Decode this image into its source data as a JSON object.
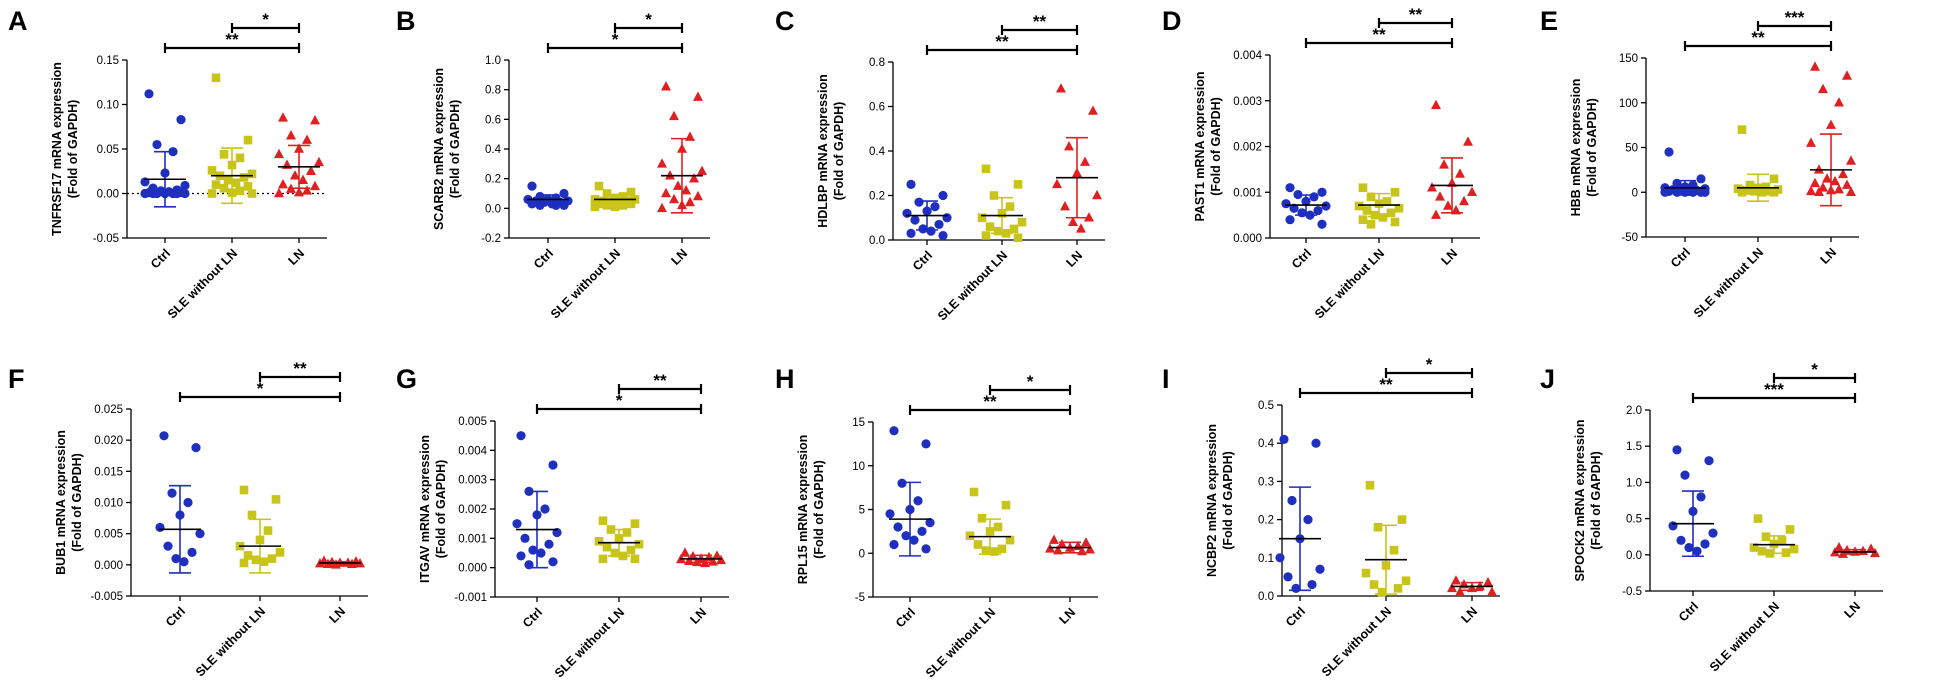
{
  "figure": {
    "groups": [
      "Ctrl",
      "SLE without LN",
      "LN"
    ],
    "colors": {
      "Ctrl": "#1f2fbf",
      "SLE without LN": "#c9c41a",
      "LN": "#e02020"
    },
    "marker_shapes": [
      "circle",
      "square",
      "triangle"
    ]
  },
  "chart_data": [
    {
      "panel": "A",
      "type": "scatter",
      "subtype": "dot-plot-mean-sd",
      "ylabel": "TNFRSF17 mRNA expression",
      "ylabel2": "(Fold of GAPDH)",
      "categories": [
        "Ctrl",
        "SLE without LN",
        "LN"
      ],
      "ylim": [
        -0.05,
        0.15
      ],
      "yticks": [
        -0.05,
        0.0,
        0.05,
        0.1,
        0.15
      ],
      "ytick_labels": [
        "-0.05",
        "0.00",
        "0.05",
        "0.10",
        "0.15"
      ],
      "zero_line": true,
      "series": [
        {
          "name": "Ctrl",
          "mean": 0.016,
          "sd": 0.031,
          "points": [
            0.112,
            0.083,
            0.055,
            0.047,
            0.023,
            0.013,
            0.009,
            0.006,
            0.004,
            0.003,
            0.002,
            0.001,
            0.001,
            0.0,
            0.0,
            0.0,
            0.0,
            0.0,
            0.0,
            0.0
          ]
        },
        {
          "name": "SLE without LN",
          "mean": 0.02,
          "sd": 0.031,
          "points": [
            0.13,
            0.06,
            0.044,
            0.04,
            0.032,
            0.026,
            0.022,
            0.02,
            0.018,
            0.015,
            0.012,
            0.01,
            0.008,
            0.006,
            0.003,
            0.001,
            0.0,
            0.0
          ]
        },
        {
          "name": "LN",
          "mean": 0.03,
          "sd": 0.024,
          "points": [
            0.085,
            0.082,
            0.065,
            0.06,
            0.05,
            0.044,
            0.035,
            0.032,
            0.025,
            0.02,
            0.015,
            0.01,
            0.008,
            0.005,
            0.003,
            0.001,
            0.0
          ]
        }
      ],
      "comparisons": [
        {
          "from": 1,
          "to": 2,
          "label": "*"
        },
        {
          "from": 0,
          "to": 2,
          "label": "**"
        }
      ]
    },
    {
      "panel": "B",
      "type": "scatter",
      "subtype": "dot-plot-mean-sd",
      "ylabel": "SCARB2 mRNA expression",
      "ylabel2": "(Fold of GAPDH)",
      "categories": [
        "Ctrl",
        "SLE without LN",
        "LN"
      ],
      "ylim": [
        -0.2,
        1.0
      ],
      "yticks": [
        -0.2,
        0.0,
        0.2,
        0.4,
        0.6,
        0.8,
        1.0
      ],
      "ytick_labels": [
        "-0.2",
        "0.0",
        "0.2",
        "0.4",
        "0.6",
        "0.8",
        "1.0"
      ],
      "zero_line": false,
      "series": [
        {
          "name": "Ctrl",
          "mean": 0.06,
          "sd": 0.03,
          "points": [
            0.15,
            0.1,
            0.08,
            0.07,
            0.06,
            0.06,
            0.05,
            0.05,
            0.04,
            0.04,
            0.03,
            0.03,
            0.02,
            0.02,
            0.02
          ]
        },
        {
          "name": "SLE without LN",
          "mean": 0.06,
          "sd": 0.03,
          "points": [
            0.15,
            0.11,
            0.1,
            0.08,
            0.07,
            0.06,
            0.06,
            0.05,
            0.05,
            0.04,
            0.04,
            0.03,
            0.03,
            0.02,
            0.02,
            0.01,
            0.01
          ]
        },
        {
          "name": "LN",
          "mean": 0.22,
          "sd": 0.25,
          "points": [
            0.82,
            0.75,
            0.62,
            0.48,
            0.4,
            0.3,
            0.25,
            0.22,
            0.2,
            0.15,
            0.12,
            0.1,
            0.08,
            0.06,
            0.04,
            0.02,
            0.0
          ]
        }
      ],
      "comparisons": [
        {
          "from": 1,
          "to": 2,
          "label": "*"
        },
        {
          "from": 0,
          "to": 2,
          "label": "*"
        }
      ]
    },
    {
      "panel": "C",
      "type": "scatter",
      "subtype": "dot-plot-mean-sd",
      "ylabel": "HDLBP mRNA expression",
      "ylabel2": "(Fold of GAPDH)",
      "categories": [
        "Ctrl",
        "SLE without LN",
        "LN"
      ],
      "ylim": [
        0.0,
        0.8
      ],
      "yticks": [
        0.0,
        0.2,
        0.4,
        0.6,
        0.8
      ],
      "ytick_labels": [
        "0.0",
        "0.2",
        "0.4",
        "0.6",
        "0.8"
      ],
      "zero_line": false,
      "series": [
        {
          "name": "Ctrl",
          "mean": 0.11,
          "sd": 0.065,
          "points": [
            0.25,
            0.2,
            0.17,
            0.15,
            0.13,
            0.12,
            0.1,
            0.09,
            0.07,
            0.05,
            0.04,
            0.03,
            0.02
          ]
        },
        {
          "name": "SLE without LN",
          "mean": 0.11,
          "sd": 0.08,
          "points": [
            0.32,
            0.25,
            0.2,
            0.15,
            0.12,
            0.1,
            0.08,
            0.06,
            0.05,
            0.04,
            0.03,
            0.02,
            0.01
          ]
        },
        {
          "name": "LN",
          "mean": 0.28,
          "sd": 0.18,
          "points": [
            0.68,
            0.58,
            0.42,
            0.35,
            0.3,
            0.25,
            0.2,
            0.15,
            0.1,
            0.08,
            0.05
          ]
        }
      ],
      "comparisons": [
        {
          "from": 1,
          "to": 2,
          "label": "**"
        },
        {
          "from": 0,
          "to": 2,
          "label": "**"
        }
      ]
    },
    {
      "panel": "D",
      "type": "scatter",
      "subtype": "dot-plot-mean-sd",
      "ylabel": "PAST1 mRNA expression",
      "ylabel2": "(Fold of GAPDH)",
      "categories": [
        "Ctrl",
        "SLE without LN",
        "LN"
      ],
      "ylim": [
        0.0,
        0.004
      ],
      "yticks": [
        0.0,
        0.001,
        0.002,
        0.003,
        0.004
      ],
      "ytick_labels": [
        "0.000",
        "0.001",
        "0.002",
        "0.003",
        "0.004"
      ],
      "zero_line": false,
      "series": [
        {
          "name": "Ctrl",
          "mean": 0.00072,
          "sd": 0.00022,
          "points": [
            0.0011,
            0.001,
            0.00095,
            0.0009,
            0.0008,
            0.00075,
            0.0007,
            0.00065,
            0.0006,
            0.00055,
            0.0005,
            0.0004,
            0.0003
          ]
        },
        {
          "name": "SLE without LN",
          "mean": 0.00072,
          "sd": 0.00025,
          "points": [
            0.0011,
            0.001,
            0.0009,
            0.0008,
            0.00075,
            0.0007,
            0.00065,
            0.0006,
            0.00055,
            0.0005,
            0.00045,
            0.0004,
            0.00035,
            0.0003
          ]
        },
        {
          "name": "LN",
          "mean": 0.00115,
          "sd": 0.0006,
          "points": [
            0.0029,
            0.0021,
            0.0016,
            0.0014,
            0.0012,
            0.0011,
            0.001,
            0.0009,
            0.0008,
            0.0007,
            0.0006,
            0.0005
          ]
        }
      ],
      "comparisons": [
        {
          "from": 1,
          "to": 2,
          "label": "**"
        },
        {
          "from": 0,
          "to": 2,
          "label": "**"
        }
      ]
    },
    {
      "panel": "E",
      "type": "scatter",
      "subtype": "dot-plot-mean-sd",
      "ylabel": "HBB mRNA expression",
      "ylabel2": "(Fold of GAPDH)",
      "categories": [
        "Ctrl",
        "SLE without LN",
        "LN"
      ],
      "ylim": [
        -50,
        150
      ],
      "yticks": [
        -50,
        0,
        50,
        100,
        150
      ],
      "ytick_labels": [
        "-50",
        "0",
        "50",
        "100",
        "150"
      ],
      "zero_line": false,
      "series": [
        {
          "name": "Ctrl",
          "mean": 5,
          "sd": 8,
          "points": [
            45,
            15,
            10,
            8,
            6,
            5,
            4,
            3,
            2,
            2,
            1,
            1,
            0,
            0,
            0,
            0,
            0,
            0
          ]
        },
        {
          "name": "SLE without LN",
          "mean": 5,
          "sd": 15,
          "points": [
            70,
            15,
            8,
            6,
            5,
            4,
            3,
            2,
            1,
            1,
            0,
            0,
            0
          ]
        },
        {
          "name": "LN",
          "mean": 25,
          "sd": 40,
          "points": [
            140,
            130,
            115,
            100,
            75,
            55,
            35,
            25,
            20,
            15,
            12,
            10,
            8,
            5,
            3,
            2,
            1,
            0,
            0
          ]
        }
      ],
      "comparisons": [
        {
          "from": 1,
          "to": 2,
          "label": "***"
        },
        {
          "from": 0,
          "to": 2,
          "label": "**"
        }
      ]
    },
    {
      "panel": "F",
      "type": "scatter",
      "subtype": "dot-plot-mean-sd",
      "ylabel": "BUB1 mRNA expression",
      "ylabel2": "(Fold of GAPDH)",
      "categories": [
        "Ctrl",
        "SLE without LN",
        "LN"
      ],
      "ylim": [
        -0.005,
        0.025
      ],
      "yticks": [
        -0.005,
        0.0,
        0.005,
        0.01,
        0.015,
        0.02,
        0.025
      ],
      "ytick_labels": [
        "-0.005",
        "0.000",
        "0.005",
        "0.010",
        "0.015",
        "0.020",
        "0.025"
      ],
      "zero_line": false,
      "series": [
        {
          "name": "Ctrl",
          "mean": 0.0057,
          "sd": 0.007,
          "points": [
            0.0207,
            0.0188,
            0.0115,
            0.01,
            0.008,
            0.006,
            0.005,
            0.003,
            0.002,
            0.001,
            0.0005
          ]
        },
        {
          "name": "SLE without LN",
          "mean": 0.003,
          "sd": 0.0043,
          "points": [
            0.012,
            0.0105,
            0.008,
            0.0055,
            0.004,
            0.003,
            0.002,
            0.0015,
            0.001,
            0.0008,
            0.0005,
            0.0003
          ]
        },
        {
          "name": "LN",
          "mean": 0.0003,
          "sd": 0.0002,
          "points": [
            0.0006,
            0.0005,
            0.0004,
            0.0003,
            0.0003,
            0.0002,
            0.0002,
            0.0001,
            0.0001,
            0.0
          ]
        }
      ],
      "comparisons": [
        {
          "from": 1,
          "to": 2,
          "label": "**"
        },
        {
          "from": 0,
          "to": 2,
          "label": "*"
        }
      ]
    },
    {
      "panel": "G",
      "type": "scatter",
      "subtype": "dot-plot-mean-sd",
      "ylabel": "ITGAV mRNA expression",
      "ylabel2": "(Fold of GAPDH)",
      "categories": [
        "Ctrl",
        "SLE without LN",
        "LN"
      ],
      "ylim": [
        -0.001,
        0.005
      ],
      "yticks": [
        -0.001,
        0.0,
        0.001,
        0.002,
        0.003,
        0.004,
        0.005
      ],
      "ytick_labels": [
        "-0.001",
        "0.000",
        "0.001",
        "0.002",
        "0.003",
        "0.004",
        "0.005"
      ],
      "zero_line": false,
      "series": [
        {
          "name": "Ctrl",
          "mean": 0.0013,
          "sd": 0.0013,
          "points": [
            0.0045,
            0.0035,
            0.0026,
            0.002,
            0.0018,
            0.0015,
            0.0012,
            0.001,
            0.0008,
            0.0006,
            0.0005,
            0.0004,
            0.0002,
            0.0001
          ]
        },
        {
          "name": "SLE without LN",
          "mean": 0.00085,
          "sd": 0.00045,
          "points": [
            0.0016,
            0.0015,
            0.0013,
            0.0012,
            0.001,
            0.0009,
            0.0008,
            0.0007,
            0.0006,
            0.0005,
            0.0004,
            0.0003,
            0.0003
          ]
        },
        {
          "name": "LN",
          "mean": 0.0003,
          "sd": 0.00012,
          "points": [
            0.0005,
            0.0004,
            0.00038,
            0.00035,
            0.0003,
            0.00028,
            0.00025,
            0.00022,
            0.0002,
            0.00018,
            0.00015
          ]
        }
      ],
      "comparisons": [
        {
          "from": 1,
          "to": 2,
          "label": "**"
        },
        {
          "from": 0,
          "to": 2,
          "label": "*"
        }
      ]
    },
    {
      "panel": "H",
      "type": "scatter",
      "subtype": "dot-plot-mean-sd",
      "ylabel": "RPL15 mRNA expression",
      "ylabel2": "(Fold of GAPDH)",
      "categories": [
        "Ctrl",
        "SLE without LN",
        "LN"
      ],
      "ylim": [
        -5,
        15
      ],
      "yticks": [
        -5,
        0,
        5,
        10,
        15
      ],
      "ytick_labels": [
        "-5",
        "0",
        "5",
        "10",
        "15"
      ],
      "zero_line": false,
      "series": [
        {
          "name": "Ctrl",
          "mean": 3.9,
          "sd": 4.2,
          "points": [
            14,
            12.5,
            8,
            6,
            5,
            4.5,
            3.5,
            3,
            2.5,
            2,
            1.5,
            1,
            0.5
          ]
        },
        {
          "name": "SLE without LN",
          "mean": 1.9,
          "sd": 2.0,
          "points": [
            7,
            5.5,
            4,
            3,
            2.5,
            2,
            1.5,
            1,
            0.5,
            0.3,
            0.2
          ]
        },
        {
          "name": "LN",
          "mean": 0.65,
          "sd": 0.6,
          "points": [
            1.5,
            1.2,
            1,
            0.8,
            0.6,
            0.5,
            0.4,
            0.3,
            0.2
          ]
        }
      ],
      "comparisons": [
        {
          "from": 1,
          "to": 2,
          "label": "*"
        },
        {
          "from": 0,
          "to": 2,
          "label": "**"
        }
      ]
    },
    {
      "panel": "I",
      "type": "scatter",
      "subtype": "dot-plot-mean-sd",
      "ylabel": "NCBP2 mRNA expression",
      "ylabel2": "(Fold of GAPDH)",
      "categories": [
        "Ctrl",
        "SLE without LN",
        "LN"
      ],
      "ylim": [
        0.0,
        0.5
      ],
      "yticks": [
        0.0,
        0.1,
        0.2,
        0.3,
        0.4,
        0.5
      ],
      "ytick_labels": [
        "0.0",
        "0.1",
        "0.2",
        "0.3",
        "0.4",
        "0.5"
      ],
      "zero_line": false,
      "series": [
        {
          "name": "Ctrl",
          "mean": 0.15,
          "sd": 0.135,
          "points": [
            0.41,
            0.4,
            0.25,
            0.2,
            0.15,
            0.1,
            0.07,
            0.05,
            0.03,
            0.02
          ]
        },
        {
          "name": "SLE without LN",
          "mean": 0.095,
          "sd": 0.09,
          "points": [
            0.29,
            0.2,
            0.18,
            0.12,
            0.08,
            0.06,
            0.04,
            0.03,
            0.02,
            0.01
          ]
        },
        {
          "name": "LN",
          "mean": 0.025,
          "sd": 0.01,
          "points": [
            0.04,
            0.035,
            0.03,
            0.025,
            0.02,
            0.02,
            0.01,
            0.01
          ]
        }
      ],
      "comparisons": [
        {
          "from": 1,
          "to": 2,
          "label": "*"
        },
        {
          "from": 0,
          "to": 2,
          "label": "**"
        }
      ]
    },
    {
      "panel": "J",
      "type": "scatter",
      "subtype": "dot-plot-mean-sd",
      "ylabel": "SPOCK2 mRNA expression",
      "ylabel2": "(Fold of GAPDH)",
      "categories": [
        "Ctrl",
        "SLE without LN",
        "LN"
      ],
      "ylim": [
        -0.5,
        2.0
      ],
      "yticks": [
        -0.5,
        0.0,
        0.5,
        1.0,
        1.5,
        2.0
      ],
      "ytick_labels": [
        "-0.5",
        "0.0",
        "0.5",
        "1.0",
        "1.5",
        "2.0"
      ],
      "zero_line": false,
      "series": [
        {
          "name": "Ctrl",
          "mean": 0.43,
          "sd": 0.45,
          "points": [
            1.45,
            1.3,
            1.1,
            0.8,
            0.6,
            0.4,
            0.3,
            0.2,
            0.15,
            0.1,
            0.05
          ]
        },
        {
          "name": "SLE without LN",
          "mean": 0.14,
          "sd": 0.12,
          "points": [
            0.5,
            0.35,
            0.25,
            0.2,
            0.15,
            0.1,
            0.08,
            0.05,
            0.03,
            0.02
          ]
        },
        {
          "name": "LN",
          "mean": 0.04,
          "sd": 0.03,
          "points": [
            0.1,
            0.08,
            0.06,
            0.05,
            0.04,
            0.03,
            0.02,
            0.01
          ]
        }
      ],
      "comparisons": [
        {
          "from": 1,
          "to": 2,
          "label": "*"
        },
        {
          "from": 0,
          "to": 2,
          "label": "***"
        }
      ]
    }
  ]
}
